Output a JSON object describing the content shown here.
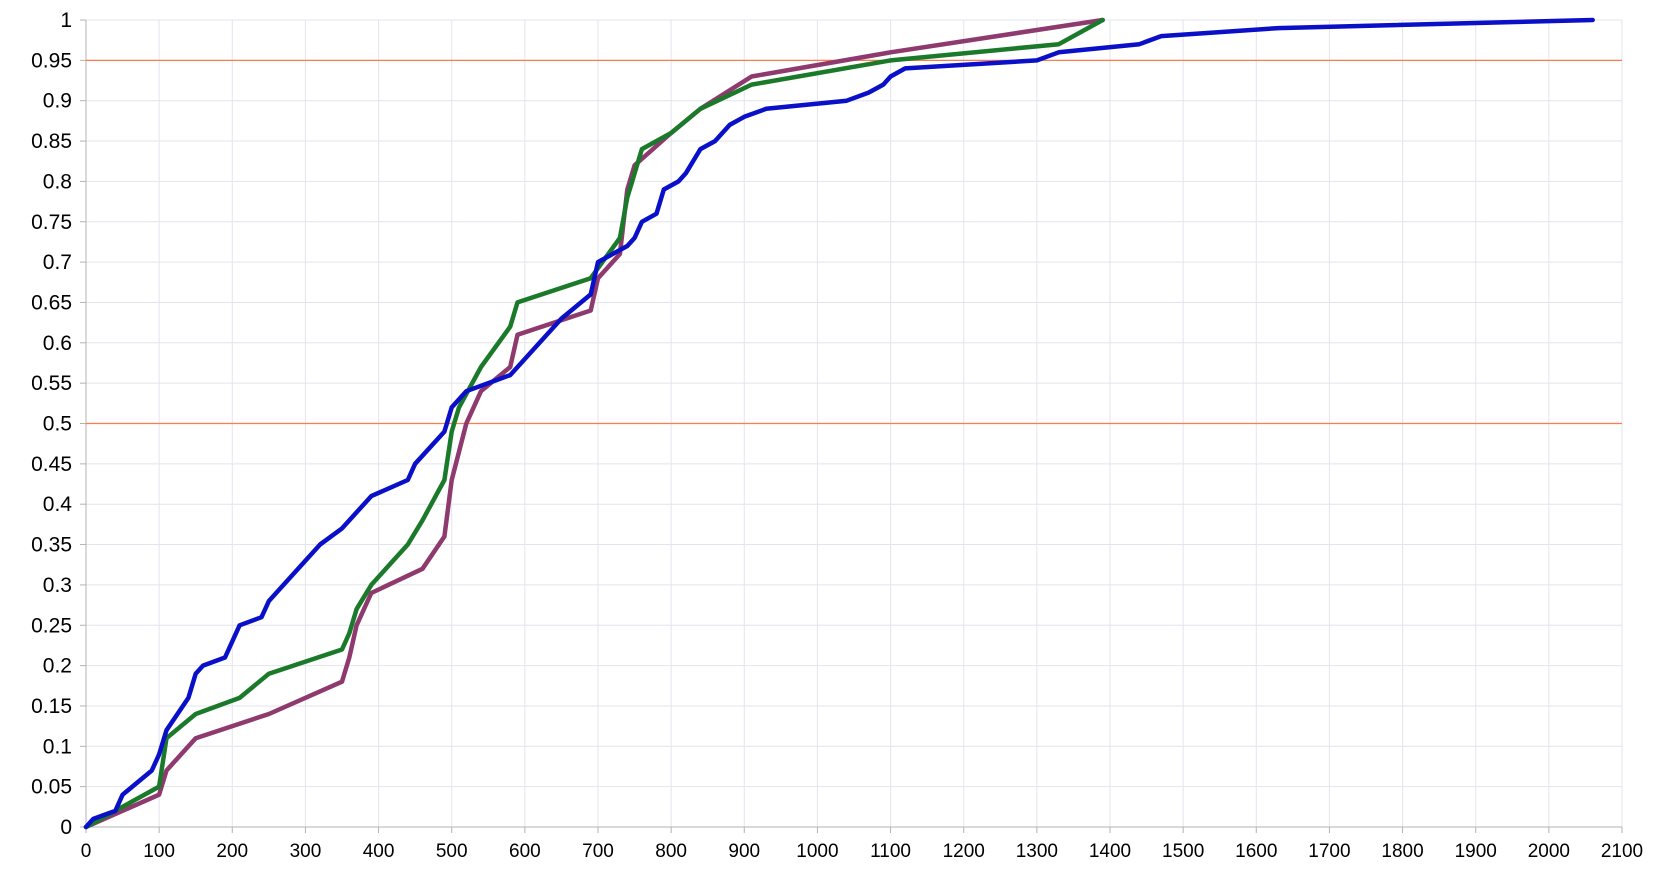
{
  "chart_data": {
    "type": "line",
    "title": "",
    "xlabel": "",
    "ylabel": "",
    "xlim": [
      0,
      2100
    ],
    "ylim": [
      0,
      1
    ],
    "x_ticks": [
      "0",
      "100",
      "200",
      "300",
      "400",
      "500",
      "600",
      "700",
      "800",
      "900",
      "1000",
      "1100",
      "1200",
      "1300",
      "1400",
      "1500",
      "1600",
      "1700",
      "1800",
      "1900",
      "2000",
      "2100"
    ],
    "y_ticks": [
      "0",
      "0.05",
      "0.1",
      "0.15",
      "0.2",
      "0.25",
      "0.3",
      "0.35",
      "0.4",
      "0.45",
      "0.5",
      "0.55",
      "0.6",
      "0.65",
      "0.7",
      "0.75",
      "0.8",
      "0.85",
      "0.9",
      "0.95",
      "1"
    ],
    "grid": true,
    "legend": "none",
    "reference_lines": [
      {
        "y": 0.5,
        "color": "#ff7a4d"
      },
      {
        "y": 0.95,
        "color": "#ff7a4d"
      }
    ],
    "series": [
      {
        "color": "#8e3a6e",
        "points": [
          [
            0,
            0
          ],
          [
            100,
            0.04
          ],
          [
            110,
            0.07
          ],
          [
            150,
            0.11
          ],
          [
            250,
            0.14
          ],
          [
            350,
            0.18
          ],
          [
            360,
            0.21
          ],
          [
            370,
            0.25
          ],
          [
            390,
            0.29
          ],
          [
            460,
            0.32
          ],
          [
            490,
            0.36
          ],
          [
            500,
            0.43
          ],
          [
            520,
            0.5
          ],
          [
            540,
            0.54
          ],
          [
            580,
            0.57
          ],
          [
            590,
            0.61
          ],
          [
            690,
            0.64
          ],
          [
            700,
            0.68
          ],
          [
            730,
            0.71
          ],
          [
            740,
            0.79
          ],
          [
            750,
            0.82
          ],
          [
            800,
            0.86
          ],
          [
            840,
            0.89
          ],
          [
            910,
            0.93
          ],
          [
            1100,
            0.96
          ],
          [
            1390,
            1.0
          ]
        ]
      },
      {
        "color": "#1a7a2a",
        "points": [
          [
            0,
            0
          ],
          [
            100,
            0.05
          ],
          [
            110,
            0.11
          ],
          [
            150,
            0.14
          ],
          [
            210,
            0.16
          ],
          [
            250,
            0.19
          ],
          [
            350,
            0.22
          ],
          [
            360,
            0.24
          ],
          [
            370,
            0.27
          ],
          [
            390,
            0.3
          ],
          [
            440,
            0.35
          ],
          [
            460,
            0.38
          ],
          [
            490,
            0.43
          ],
          [
            500,
            0.49
          ],
          [
            510,
            0.52
          ],
          [
            540,
            0.57
          ],
          [
            580,
            0.62
          ],
          [
            590,
            0.65
          ],
          [
            690,
            0.68
          ],
          [
            730,
            0.73
          ],
          [
            740,
            0.78
          ],
          [
            760,
            0.84
          ],
          [
            800,
            0.86
          ],
          [
            840,
            0.89
          ],
          [
            910,
            0.92
          ],
          [
            1100,
            0.95
          ],
          [
            1330,
            0.97
          ],
          [
            1390,
            1.0
          ]
        ]
      },
      {
        "color": "#0a10c8",
        "points": [
          [
            0,
            0
          ],
          [
            10,
            0.01
          ],
          [
            40,
            0.02
          ],
          [
            50,
            0.04
          ],
          [
            90,
            0.07
          ],
          [
            100,
            0.09
          ],
          [
            110,
            0.12
          ],
          [
            140,
            0.16
          ],
          [
            150,
            0.19
          ],
          [
            160,
            0.2
          ],
          [
            190,
            0.21
          ],
          [
            210,
            0.25
          ],
          [
            240,
            0.26
          ],
          [
            250,
            0.28
          ],
          [
            320,
            0.35
          ],
          [
            350,
            0.37
          ],
          [
            390,
            0.41
          ],
          [
            440,
            0.43
          ],
          [
            450,
            0.45
          ],
          [
            490,
            0.49
          ],
          [
            500,
            0.52
          ],
          [
            520,
            0.54
          ],
          [
            580,
            0.56
          ],
          [
            650,
            0.63
          ],
          [
            690,
            0.66
          ],
          [
            700,
            0.7
          ],
          [
            720,
            0.71
          ],
          [
            740,
            0.72
          ],
          [
            750,
            0.73
          ],
          [
            760,
            0.75
          ],
          [
            780,
            0.76
          ],
          [
            790,
            0.79
          ],
          [
            810,
            0.8
          ],
          [
            820,
            0.81
          ],
          [
            840,
            0.84
          ],
          [
            860,
            0.85
          ],
          [
            880,
            0.87
          ],
          [
            900,
            0.88
          ],
          [
            930,
            0.89
          ],
          [
            1040,
            0.9
          ],
          [
            1070,
            0.91
          ],
          [
            1090,
            0.92
          ],
          [
            1100,
            0.93
          ],
          [
            1120,
            0.94
          ],
          [
            1300,
            0.95
          ],
          [
            1330,
            0.96
          ],
          [
            1440,
            0.97
          ],
          [
            1470,
            0.98
          ],
          [
            1630,
            0.99
          ],
          [
            2060,
            1.0
          ]
        ]
      }
    ]
  }
}
